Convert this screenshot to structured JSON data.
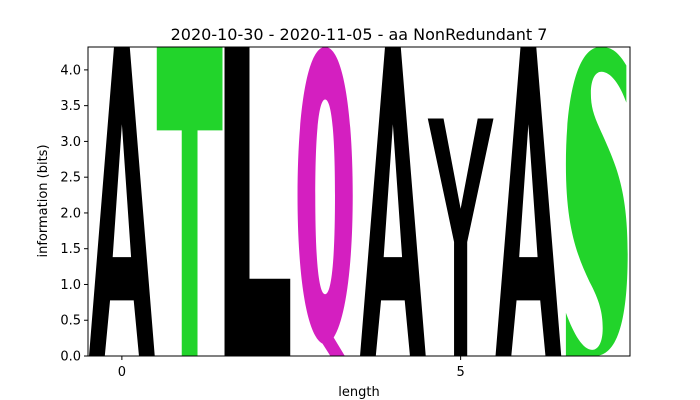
{
  "chart_data": {
    "type": "sequence-logo",
    "title": "2020-10-30 - 2020-11-05 - aa NonRedundant 7",
    "xlabel": "length",
    "ylabel": "information (bits)",
    "xlim": [
      -0.5,
      7.5
    ],
    "ylim": [
      0,
      4.32
    ],
    "xticks": [
      0,
      5
    ],
    "yticks": [
      0.0,
      0.5,
      1.0,
      1.5,
      2.0,
      2.5,
      3.0,
      3.5,
      4.0
    ],
    "ytick_labels": [
      "0.0",
      "0.5",
      "1.0",
      "1.5",
      "2.0",
      "2.5",
      "3.0",
      "3.5",
      "4.0"
    ],
    "grid": false,
    "colors": {
      "hydrophobic": "#000000",
      "polar": "#22d42b",
      "amide": "#d41fc0"
    },
    "positions": [
      {
        "x": 0,
        "letters": [
          {
            "letter": "A",
            "height": 4.32,
            "color": "#000000"
          }
        ]
      },
      {
        "x": 1,
        "letters": [
          {
            "letter": "T",
            "height": 4.32,
            "color": "#22d42b"
          }
        ]
      },
      {
        "x": 2,
        "letters": [
          {
            "letter": "L",
            "height": 4.32,
            "color": "#000000"
          }
        ]
      },
      {
        "x": 3,
        "letters": [
          {
            "letter": "Q",
            "height": 4.32,
            "color": "#d41fc0"
          }
        ]
      },
      {
        "x": 4,
        "letters": [
          {
            "letter": "A",
            "height": 4.32,
            "color": "#000000"
          }
        ]
      },
      {
        "x": 5,
        "letters": [
          {
            "letter": "Y",
            "height": 3.32,
            "color": "#000000"
          }
        ]
      },
      {
        "x": 6,
        "letters": [
          {
            "letter": "A",
            "height": 4.32,
            "color": "#000000"
          }
        ]
      },
      {
        "x": 7,
        "letters": [
          {
            "letter": "S",
            "height": 4.32,
            "color": "#22d42b"
          }
        ]
      }
    ]
  }
}
